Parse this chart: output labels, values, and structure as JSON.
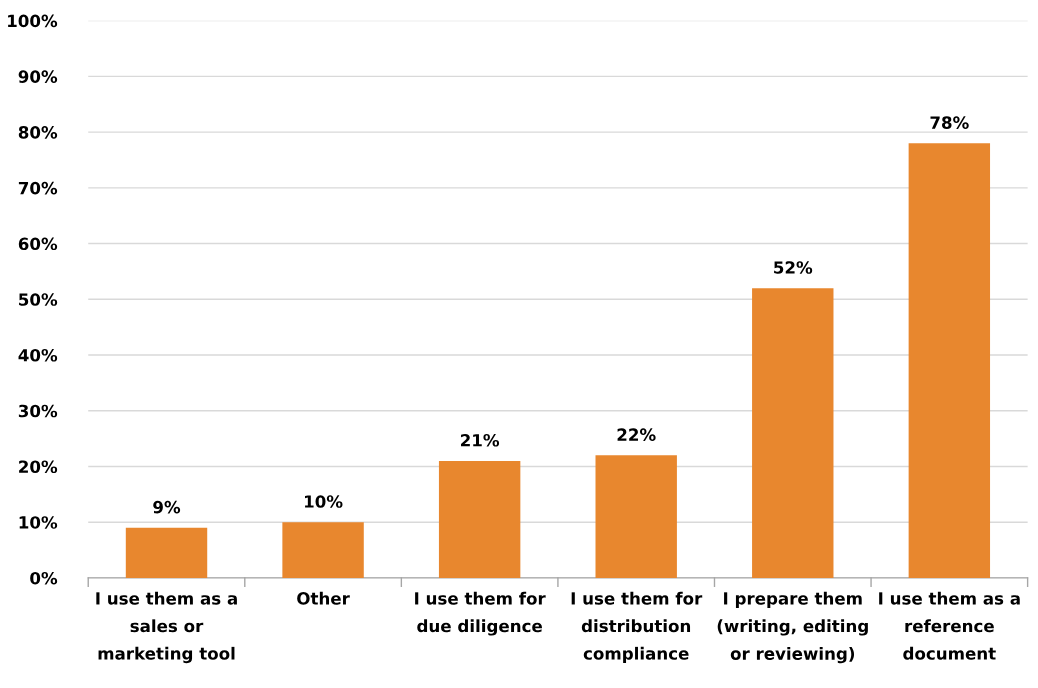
{
  "chart_data": {
    "type": "bar",
    "categories": [
      "I use them as a\nsales or\nmarketing tool",
      "Other",
      "I use them for\ndue diligence",
      "I use them for\ndistribution\ncompliance",
      "I prepare them\n(writing, editing\nor reviewing)",
      "I use them as a\nreference\ndocument"
    ],
    "values": [
      9,
      10,
      21,
      22,
      52,
      78
    ],
    "value_labels": [
      "9%",
      "10%",
      "21%",
      "22%",
      "52%",
      "78%"
    ],
    "color": "#e8872e",
    "ylim": [
      0,
      100
    ],
    "yticks": [
      {
        "value": 0,
        "label": "0%"
      },
      {
        "value": 10,
        "label": "10%"
      },
      {
        "value": 20,
        "label": "20%"
      },
      {
        "value": 30,
        "label": "30%"
      },
      {
        "value": 40,
        "label": "40%"
      },
      {
        "value": 50,
        "label": "50%"
      },
      {
        "value": 60,
        "label": "60%"
      },
      {
        "value": 70,
        "label": "70%"
      },
      {
        "value": 80,
        "label": "80%"
      },
      {
        "value": 90,
        "label": "90%"
      },
      {
        "value": 100,
        "label": "100%"
      }
    ],
    "grid": "y",
    "legend": false
  }
}
